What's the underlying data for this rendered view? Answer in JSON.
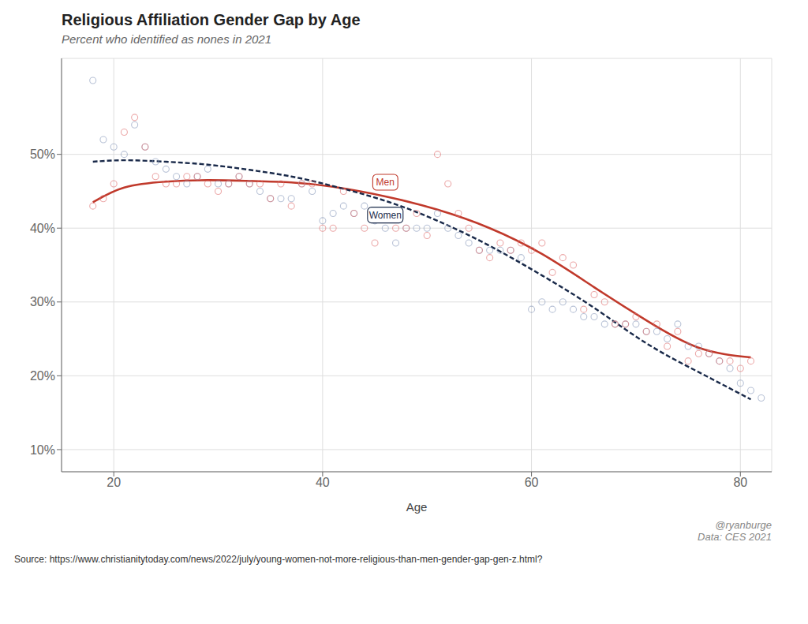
{
  "chart_data": {
    "type": "scatter",
    "title": "Religious Affiliation Gender Gap by Age",
    "subtitle": "Percent who identified as nones in 2021",
    "xlabel": "Age",
    "attribution": "@ryanburge\nData: CES 2021",
    "source": "Source:  https://www.christianitytoday.com/news/2022/july/young-women-not-more-religious-than-men-gender-gap-gen-z.html?",
    "xlim": [
      15,
      83
    ],
    "xticks": [
      20,
      40,
      60,
      80
    ],
    "ylim": [
      0.07,
      0.63
    ],
    "yticks": [
      {
        "value": 0.1,
        "label": "10%"
      },
      {
        "value": 0.2,
        "label": "20%"
      },
      {
        "value": 0.3,
        "label": "30%"
      },
      {
        "value": 0.4,
        "label": "40%"
      },
      {
        "value": 0.5,
        "label": "50%"
      }
    ],
    "grid": true,
    "series": [
      {
        "type": "scatter",
        "color": "#8899bb",
        "marker": "open_circle",
        "x": [
          18,
          19,
          20,
          21,
          22,
          23,
          24,
          25,
          26,
          27,
          28,
          29,
          30,
          31,
          32,
          33,
          34,
          35,
          36,
          37,
          38,
          39,
          40,
          41,
          42,
          43,
          44,
          45,
          46,
          47,
          48,
          49,
          50,
          51,
          52,
          53,
          54,
          55,
          56,
          57,
          58,
          59,
          60,
          61,
          62,
          63,
          64,
          65,
          66,
          67,
          68,
          69,
          70,
          71,
          72,
          73,
          74,
          75,
          76,
          77,
          78,
          79,
          80,
          81,
          82
        ],
        "values": [
          0.6,
          0.52,
          0.51,
          0.5,
          0.54,
          0.51,
          0.49,
          0.48,
          0.47,
          0.46,
          0.47,
          0.48,
          0.46,
          0.46,
          0.47,
          0.46,
          0.45,
          0.44,
          0.44,
          0.44,
          0.46,
          0.45,
          0.41,
          0.42,
          0.43,
          0.42,
          0.43,
          0.41,
          0.4,
          0.38,
          0.4,
          0.4,
          0.4,
          0.42,
          0.4,
          0.39,
          0.38,
          0.37,
          0.37,
          0.37,
          0.37,
          0.36,
          0.29,
          0.3,
          0.29,
          0.3,
          0.29,
          0.28,
          0.28,
          0.27,
          0.27,
          0.27,
          0.27,
          0.26,
          0.26,
          0.25,
          0.27,
          0.24,
          0.24,
          0.23,
          0.22,
          0.21,
          0.19,
          0.18,
          0.17
        ]
      },
      {
        "type": "scatter",
        "color": "#e07070",
        "marker": "open_circle",
        "x": [
          18,
          19,
          20,
          21,
          22,
          23,
          24,
          25,
          26,
          27,
          28,
          29,
          30,
          31,
          32,
          33,
          34,
          35,
          36,
          37,
          38,
          39,
          40,
          41,
          42,
          43,
          44,
          45,
          46,
          47,
          48,
          49,
          50,
          51,
          52,
          53,
          54,
          55,
          56,
          57,
          58,
          59,
          60,
          61,
          62,
          63,
          64,
          65,
          66,
          67,
          68,
          69,
          70,
          71,
          72,
          73,
          74,
          75,
          76,
          77,
          78,
          79,
          80,
          81
        ],
        "values": [
          0.43,
          0.44,
          0.46,
          0.53,
          0.55,
          0.51,
          0.47,
          0.46,
          0.46,
          0.47,
          0.47,
          0.46,
          0.45,
          0.46,
          0.47,
          0.46,
          0.46,
          0.44,
          0.46,
          0.43,
          0.46,
          0.46,
          0.4,
          0.4,
          0.45,
          0.42,
          0.4,
          0.38,
          0.42,
          0.4,
          0.4,
          0.42,
          0.39,
          0.5,
          0.46,
          0.42,
          0.4,
          0.37,
          0.36,
          0.38,
          0.37,
          0.38,
          0.37,
          0.38,
          0.34,
          0.36,
          0.35,
          0.29,
          0.31,
          0.3,
          0.27,
          0.27,
          0.28,
          0.26,
          0.27,
          0.24,
          0.26,
          0.22,
          0.23,
          0.23,
          0.22,
          0.22,
          0.21,
          0.22
        ]
      },
      {
        "type": "line",
        "name": "Men",
        "color": "#c0392b",
        "line_style": "solid",
        "x": [
          18,
          21,
          25,
          29,
          33,
          37,
          41,
          46,
          51,
          56,
          61,
          66,
          71,
          76,
          81
        ],
        "values": [
          0.435,
          0.455,
          0.463,
          0.465,
          0.464,
          0.462,
          0.456,
          0.443,
          0.425,
          0.4,
          0.365,
          0.32,
          0.275,
          0.238,
          0.225
        ]
      },
      {
        "type": "line",
        "name": "Women",
        "color": "#1a2a4a",
        "line_style": "dashed",
        "x": [
          18,
          21,
          25,
          29,
          33,
          37,
          41,
          46,
          51,
          56,
          61,
          66,
          71,
          76,
          81
        ],
        "values": [
          0.49,
          0.492,
          0.49,
          0.486,
          0.479,
          0.47,
          0.457,
          0.437,
          0.41,
          0.376,
          0.336,
          0.292,
          0.244,
          0.205,
          0.168
        ]
      }
    ],
    "annotations": [
      {
        "text": "Men",
        "series": "Men"
      },
      {
        "text": "Women",
        "series": "Women"
      }
    ]
  }
}
